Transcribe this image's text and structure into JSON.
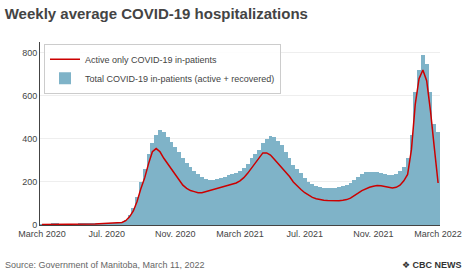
{
  "chart_data": {
    "type": "bar",
    "title": "Weekly average COVID-19 hospitalizations",
    "categories": [
      "March 2020",
      null,
      null,
      null,
      null,
      null,
      null,
      null,
      null,
      null,
      null,
      null,
      null,
      null,
      null,
      null,
      null,
      "Jul. 2020",
      null,
      null,
      null,
      null,
      null,
      null,
      null,
      null,
      null,
      null,
      null,
      null,
      null,
      null,
      null,
      null,
      null,
      "Nov. 2020",
      null,
      null,
      null,
      null,
      null,
      null,
      null,
      null,
      null,
      null,
      null,
      null,
      null,
      null,
      null,
      null,
      "March 2021",
      null,
      null,
      null,
      null,
      null,
      null,
      null,
      null,
      null,
      null,
      null,
      null,
      null,
      null,
      null,
      null,
      "Jul. 2021",
      null,
      null,
      null,
      null,
      null,
      null,
      null,
      null,
      null,
      null,
      null,
      null,
      null,
      null,
      null,
      null,
      null,
      "Nov. 2021",
      null,
      null,
      null,
      null,
      null,
      null,
      null,
      null,
      null,
      null,
      null,
      null,
      null,
      null,
      null,
      null,
      "March 2022"
    ],
    "series": [
      {
        "name": "Total COVID-19 in-patients (active + recovered)",
        "type": "bar",
        "color": "#7fb3c8",
        "values": [
          2,
          3,
          4,
          5,
          5,
          4,
          4,
          4,
          4,
          4,
          5,
          5,
          5,
          5,
          6,
          7,
          8,
          8,
          8,
          8,
          10,
          15,
          25,
          45,
          80,
          130,
          200,
          260,
          330,
          380,
          420,
          440,
          430,
          410,
          385,
          360,
          340,
          310,
          290,
          270,
          250,
          235,
          225,
          215,
          210,
          210,
          215,
          220,
          225,
          230,
          235,
          240,
          250,
          265,
          285,
          310,
          330,
          350,
          380,
          400,
          415,
          410,
          390,
          370,
          340,
          310,
          280,
          260,
          240,
          220,
          200,
          190,
          180,
          175,
          173,
          172,
          170,
          172,
          175,
          180,
          185,
          195,
          210,
          225,
          238,
          245,
          248,
          248,
          245,
          240,
          235,
          232,
          230,
          235,
          250,
          270,
          310,
          420,
          620,
          720,
          790,
          750,
          620,
          470,
          430
        ]
      },
      {
        "name": "Active only COVID-19 in-patients",
        "type": "line",
        "color": "#cc0000",
        "values": [
          2,
          2,
          3,
          4,
          4,
          3,
          3,
          3,
          3,
          3,
          4,
          4,
          4,
          5,
          5,
          6,
          7,
          7,
          7,
          7,
          8,
          12,
          20,
          38,
          65,
          110,
          170,
          220,
          285,
          340,
          355,
          340,
          310,
          285,
          255,
          230,
          205,
          185,
          170,
          160,
          155,
          150,
          150,
          155,
          160,
          165,
          170,
          175,
          180,
          185,
          190,
          195,
          205,
          220,
          240,
          265,
          285,
          310,
          335,
          335,
          325,
          305,
          285,
          270,
          250,
          225,
          200,
          180,
          165,
          150,
          138,
          128,
          122,
          118,
          115,
          114,
          113,
          112,
          113,
          115,
          118,
          125,
          135,
          148,
          160,
          168,
          175,
          180,
          183,
          182,
          178,
          175,
          172,
          175,
          185,
          205,
          235,
          350,
          560,
          680,
          720,
          670,
          530,
          360,
          195
        ]
      }
    ],
    "ylim": [
      0,
      850
    ],
    "yticks": [
      0,
      200,
      400,
      600,
      800
    ],
    "grid": true,
    "legend": "upper left",
    "annotations": [
      "Source: Government of Manitoba, March 11, 2022",
      "❖",
      "CBC",
      "NEWS"
    ]
  }
}
